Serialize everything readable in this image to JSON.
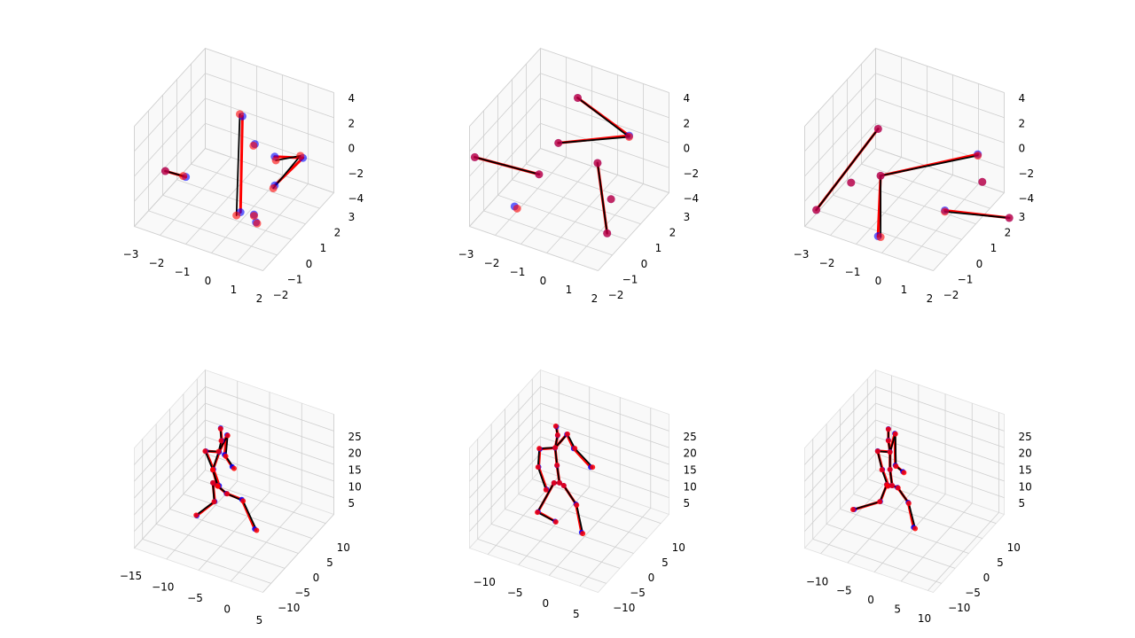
{
  "chart_data": [
    {
      "type": "scatter3d",
      "xlim": [
        -3,
        2
      ],
      "ylim": [
        -2,
        3
      ],
      "zlim": [
        -4,
        4
      ],
      "xticks": [
        {
          "value": -3,
          "label": "−3"
        },
        {
          "value": -2,
          "label": "−2"
        },
        {
          "value": -1,
          "label": "−1"
        },
        0,
        1,
        2
      ],
      "yticks": [
        {
          "value": -2,
          "label": "−2"
        },
        {
          "value": -1,
          "label": "−1"
        },
        0,
        1,
        2,
        3
      ],
      "zticks": [
        {
          "value": -4,
          "label": "−4"
        },
        {
          "value": -2,
          "label": "−2"
        },
        0,
        2,
        4
      ],
      "edges": [
        [
          0,
          1
        ],
        [
          6,
          7
        ],
        [
          3,
          4
        ],
        [
          4,
          5
        ]
      ],
      "series": [
        {
          "color": "#0000ff",
          "line_color": "#ff0000",
          "x": [
            0.1,
            0.3,
            -0.3,
            1.3,
            1.9,
            1.3,
            -2.9,
            -2.1,
            1.1,
            1.4
          ],
          "y": [
            0,
            -0.5,
            1.6,
            0.1,
            1,
            0.1,
            0,
            0,
            -1,
            -1.4
          ],
          "z": [
            4.5,
            -2.4,
            0,
            2,
            1.2,
            -0.3,
            -2,
            -1.9,
            -1.4,
            -1.3
          ]
        },
        {
          "color": "#ff0000",
          "line_color": "#000000",
          "x": [
            0,
            0.2,
            -0.3,
            1.4,
            1.8,
            1.3,
            -2.9,
            -2.2,
            1.1,
            1.5
          ],
          "y": [
            0,
            -0.6,
            1.5,
            0,
            1,
            0,
            0,
            0,
            -1,
            -1.5
          ],
          "z": [
            4.6,
            -2.6,
            0,
            1.9,
            1.3,
            -0.4,
            -2,
            -1.9,
            -1.5,
            -1.2
          ]
        }
      ]
    },
    {
      "type": "scatter3d",
      "xlim": [
        -3,
        2
      ],
      "ylim": [
        -2,
        3
      ],
      "zlim": [
        -4,
        4
      ],
      "xticks": [
        {
          "value": -3,
          "label": "−3"
        },
        {
          "value": -2,
          "label": "−2"
        },
        {
          "value": -1,
          "label": "−1"
        },
        0,
        1,
        2
      ],
      "yticks": [
        {
          "value": -2,
          "label": "−2"
        },
        {
          "value": -1,
          "label": "−1"
        },
        0,
        1,
        2,
        3
      ],
      "zticks": [
        {
          "value": -4,
          "label": "−4"
        },
        {
          "value": -2,
          "label": "−2"
        },
        0,
        2,
        4
      ],
      "edges": [
        [
          0,
          1
        ],
        [
          1,
          2
        ],
        [
          3,
          4
        ],
        [
          5,
          7
        ]
      ],
      "series": [
        {
          "color": "#0000ff",
          "line_color": "#ff0000",
          "x": [
            -1,
            1,
            -1.2,
            -3.9,
            -1.4,
            0.6,
            1.4,
            1.8,
            -1.8
          ],
          "y": [
            2,
            2,
            1,
            0,
            0,
            0.5,
            0,
            -1,
            -1
          ],
          "z": [
            2.7,
            1.1,
            0.2,
            -1.6,
            -1.2,
            0.5,
            -1.2,
            -2.4,
            -2.8
          ]
        },
        {
          "color": "#ff0000",
          "line_color": "#000000",
          "x": [
            -1,
            1,
            -1.2,
            -3.9,
            -1.4,
            0.6,
            1.4,
            1.8,
            -1.7
          ],
          "y": [
            2,
            2,
            1,
            0,
            0,
            0.5,
            0,
            -1,
            -1
          ],
          "z": [
            2.7,
            1,
            0.2,
            -1.6,
            -1.2,
            0.5,
            -1.2,
            -2.4,
            -2.9
          ]
        }
      ]
    },
    {
      "type": "scatter3d",
      "xlim": [
        -3,
        2
      ],
      "ylim": [
        -2,
        3
      ],
      "zlim": [
        -4,
        4
      ],
      "xticks": [
        {
          "value": -3,
          "label": "−3"
        },
        {
          "value": -2,
          "label": "−2"
        },
        {
          "value": -1,
          "label": "−1"
        },
        0,
        1,
        2
      ],
      "yticks": [
        {
          "value": -2,
          "label": "−2"
        },
        {
          "value": -1,
          "label": "−1"
        },
        0,
        1,
        2,
        3
      ],
      "zticks": [
        {
          "value": -4,
          "label": "−4"
        },
        {
          "value": -2,
          "label": "−2"
        },
        0,
        2,
        4
      ],
      "edges": [
        [
          0,
          1
        ],
        [
          2,
          3
        ],
        [
          2,
          4
        ],
        [
          7,
          8
        ]
      ],
      "series": [
        {
          "color": "#0000ff",
          "line_color": "#ff0000",
          "x": [
            -1.8,
            -3.1,
            -0.6,
            1.8,
            -0.7,
            -2.3,
            1.7,
            1.9,
            3.3
          ],
          "y": [
            1,
            -1,
            -1,
            1.5,
            -1,
            0,
            2,
            -1,
            1
          ],
          "z": [
            0.9,
            -4,
            0.5,
            0.8,
            -4.4,
            -2.5,
            -2.1,
            -0.5,
            -2.6
          ]
        },
        {
          "color": "#ff0000",
          "line_color": "#000000",
          "x": [
            -1.8,
            -3.1,
            -0.6,
            1.8,
            -0.6,
            -2.3,
            1.7,
            1.9,
            3.3
          ],
          "y": [
            1,
            -1,
            -1,
            1.5,
            -1,
            0,
            2,
            -1,
            1
          ],
          "z": [
            0.9,
            -4,
            0.5,
            0.7,
            -4.4,
            -2.5,
            -2.1,
            -0.6,
            -2.6
          ]
        }
      ]
    },
    {
      "type": "scatter3d",
      "xlim": [
        -15,
        5
      ],
      "ylim": [
        -13,
        13
      ],
      "zlim": [
        0,
        30
      ],
      "xticks": [
        {
          "value": -15,
          "label": "−15"
        },
        {
          "value": -10,
          "label": "−10"
        },
        {
          "value": -5,
          "label": "−5"
        },
        0,
        5
      ],
      "yticks": [
        {
          "value": -10,
          "label": "−10"
        },
        {
          "value": -5,
          "label": "−5"
        },
        0,
        5,
        10
      ],
      "zticks": [
        5,
        10,
        15,
        20,
        25
      ],
      "edges": [
        [
          0,
          1
        ],
        [
          1,
          2
        ],
        [
          2,
          3
        ],
        [
          0,
          4
        ],
        [
          4,
          5
        ],
        [
          5,
          6
        ],
        [
          0,
          7
        ],
        [
          7,
          8
        ],
        [
          8,
          9
        ],
        [
          9,
          10
        ],
        [
          8,
          11
        ],
        [
          11,
          12
        ],
        [
          12,
          13
        ],
        [
          8,
          14
        ],
        [
          14,
          15
        ],
        [
          15,
          16
        ]
      ],
      "series": [
        {
          "color": "#0000ff",
          "line_color": "#ff0000",
          "x": [
            -7.6,
            -6.2,
            -3.8,
            -1.8,
            -8.3,
            -8.0,
            -10.8,
            -8.3,
            -7.3,
            -6.9,
            -7.1,
            -9.4,
            -8.2,
            -7.3,
            -6.1,
            -6.5,
            -5.3
          ],
          "y": [
            0,
            0,
            0,
            0,
            0,
            0,
            0,
            0,
            0,
            0,
            0,
            0,
            0,
            0,
            0,
            0,
            0
          ],
          "z": [
            11.9,
            10.5,
            10.3,
            2.8,
            12.3,
            6.9,
            0.8,
            16.2,
            22.2,
            25.9,
            29.5,
            21.1,
            16.4,
            12.1,
            28.1,
            21.9,
            19.1
          ]
        },
        {
          "color": "#ff0000",
          "line_color": "#000000",
          "x": [
            -7.6,
            -6.1,
            -3.6,
            -1.5,
            -8.3,
            -8.1,
            -10.9,
            -8.3,
            -7.4,
            -7.0,
            -7.1,
            -9.5,
            -8.3,
            -7.5,
            -6.0,
            -6.3,
            -5.0
          ],
          "y": [
            0,
            0,
            0,
            0,
            0,
            0,
            0,
            0,
            0,
            0,
            0,
            0,
            0,
            0,
            0,
            0,
            0
          ],
          "z": [
            11.9,
            10.5,
            10.0,
            2.6,
            12.3,
            6.8,
            0.9,
            16.3,
            22.3,
            25.8,
            29.3,
            21.0,
            16.2,
            11.8,
            28.0,
            21.6,
            18.8
          ]
        }
      ]
    },
    {
      "type": "scatter3d",
      "xlim": [
        -13,
        8
      ],
      "ylim": [
        -13,
        13
      ],
      "zlim": [
        0,
        30
      ],
      "xticks": [
        {
          "value": -10,
          "label": "−10"
        },
        {
          "value": -5,
          "label": "−5"
        },
        0,
        5
      ],
      "yticks": [
        {
          "value": -10,
          "label": "−10"
        },
        {
          "value": -5,
          "label": "−5"
        },
        0,
        5,
        10
      ],
      "zticks": [
        5,
        10,
        15,
        20,
        25
      ],
      "edges": [
        [
          0,
          1
        ],
        [
          1,
          2
        ],
        [
          2,
          3
        ],
        [
          0,
          4
        ],
        [
          4,
          5
        ],
        [
          5,
          6
        ],
        [
          0,
          7
        ],
        [
          7,
          8
        ],
        [
          8,
          9
        ],
        [
          9,
          10
        ],
        [
          8,
          11
        ],
        [
          11,
          12
        ],
        [
          12,
          13
        ],
        [
          8,
          14
        ],
        [
          14,
          15
        ],
        [
          15,
          16
        ]
      ],
      "series": [
        {
          "color": "#0000ff",
          "line_color": "#ff0000",
          "x": [
            -4.1,
            -3.4,
            -1.4,
            -0.5,
            -5.0,
            -7.6,
            -4.8,
            -4.5,
            -4.8,
            -4.4,
            -4.6,
            -7.3,
            -7.5,
            -6.2,
            -2.9,
            -1.8,
            1.0
          ],
          "y": [
            0,
            0,
            0,
            0,
            0,
            0,
            0,
            0,
            0,
            0,
            0,
            0,
            0,
            0,
            0,
            0,
            0
          ],
          "z": [
            13.5,
            13.1,
            8.8,
            0.9,
            12.9,
            2.6,
            1.5,
            18.4,
            23.5,
            27.5,
            30.0,
            21.6,
            16.1,
            10.2,
            28.8,
            25.2,
            21.4
          ]
        },
        {
          "color": "#ff0000",
          "line_color": "#000000",
          "x": [
            -4.1,
            -3.4,
            -1.3,
            -0.3,
            -5.0,
            -7.7,
            -4.7,
            -4.5,
            -4.8,
            -4.4,
            -4.7,
            -7.4,
            -7.6,
            -6.3,
            -2.8,
            -1.6,
            1.3
          ],
          "y": [
            0,
            0,
            0,
            0,
            0,
            0,
            0,
            0,
            0,
            0,
            0,
            0,
            0,
            0,
            0,
            0,
            0
          ],
          "z": [
            13.5,
            13.1,
            8.6,
            0.7,
            12.9,
            2.4,
            1.4,
            18.5,
            23.6,
            27.6,
            30.1,
            21.7,
            16.0,
            10.0,
            28.9,
            25.4,
            21.6
          ]
        }
      ]
    },
    {
      "type": "scatter3d",
      "xlim": [
        -13,
        11
      ],
      "ylim": [
        -13,
        13
      ],
      "zlim": [
        0,
        30
      ],
      "xticks": [
        {
          "value": -10,
          "label": "−10"
        },
        {
          "value": -5,
          "label": "−5"
        },
        0,
        5,
        10
      ],
      "yticks": [
        {
          "value": -10,
          "label": "−10"
        },
        {
          "value": -5,
          "label": "−5"
        },
        0,
        5,
        10
      ],
      "zticks": [
        5,
        10,
        15,
        20,
        25
      ],
      "edges": [
        [
          0,
          1
        ],
        [
          1,
          2
        ],
        [
          2,
          3
        ],
        [
          0,
          4
        ],
        [
          4,
          5
        ],
        [
          5,
          6
        ],
        [
          0,
          7
        ],
        [
          7,
          8
        ],
        [
          8,
          9
        ],
        [
          9,
          10
        ],
        [
          8,
          11
        ],
        [
          11,
          12
        ],
        [
          12,
          13
        ],
        [
          8,
          14
        ],
        [
          14,
          15
        ],
        [
          15,
          16
        ]
      ],
      "series": [
        {
          "color": "#0000ff",
          "line_color": "#ff0000",
          "x": [
            -3.3,
            -2.3,
            -0.3,
            0.7,
            -4.3,
            -5.5,
            -10.4,
            -3.7,
            -3.7,
            -4.0,
            -4.0,
            -6.0,
            -5.1,
            -4.0,
            -2.8,
            -2.7,
            -1.3
          ],
          "y": [
            0,
            0,
            0,
            0,
            0,
            0,
            0,
            0,
            0,
            0,
            0,
            0,
            0,
            0,
            0,
            0,
            0
          ],
          "z": [
            12.4,
            12.4,
            9.0,
            2.1,
            12.1,
            6.4,
            1.3,
            17.0,
            22.3,
            25.6,
            29.0,
            21.3,
            16.2,
            12.0,
            28.3,
            18.8,
            17.7
          ]
        },
        {
          "color": "#ff0000",
          "line_color": "#000000",
          "x": [
            -3.3,
            -2.2,
            -0.2,
            1.0,
            -4.3,
            -5.6,
            -10.6,
            -3.7,
            -3.7,
            -4.0,
            -4.0,
            -6.0,
            -5.2,
            -4.1,
            -2.7,
            -2.6,
            -1.1
          ],
          "y": [
            0,
            0,
            0,
            0,
            0,
            0,
            0,
            0,
            0,
            0,
            0,
            0,
            0,
            0,
            0,
            0,
            0
          ],
          "z": [
            12.4,
            12.3,
            8.8,
            1.9,
            12.1,
            6.3,
            1.2,
            17.0,
            22.2,
            25.5,
            28.9,
            21.2,
            16.1,
            11.8,
            28.2,
            18.6,
            17.5
          ]
        }
      ]
    }
  ]
}
